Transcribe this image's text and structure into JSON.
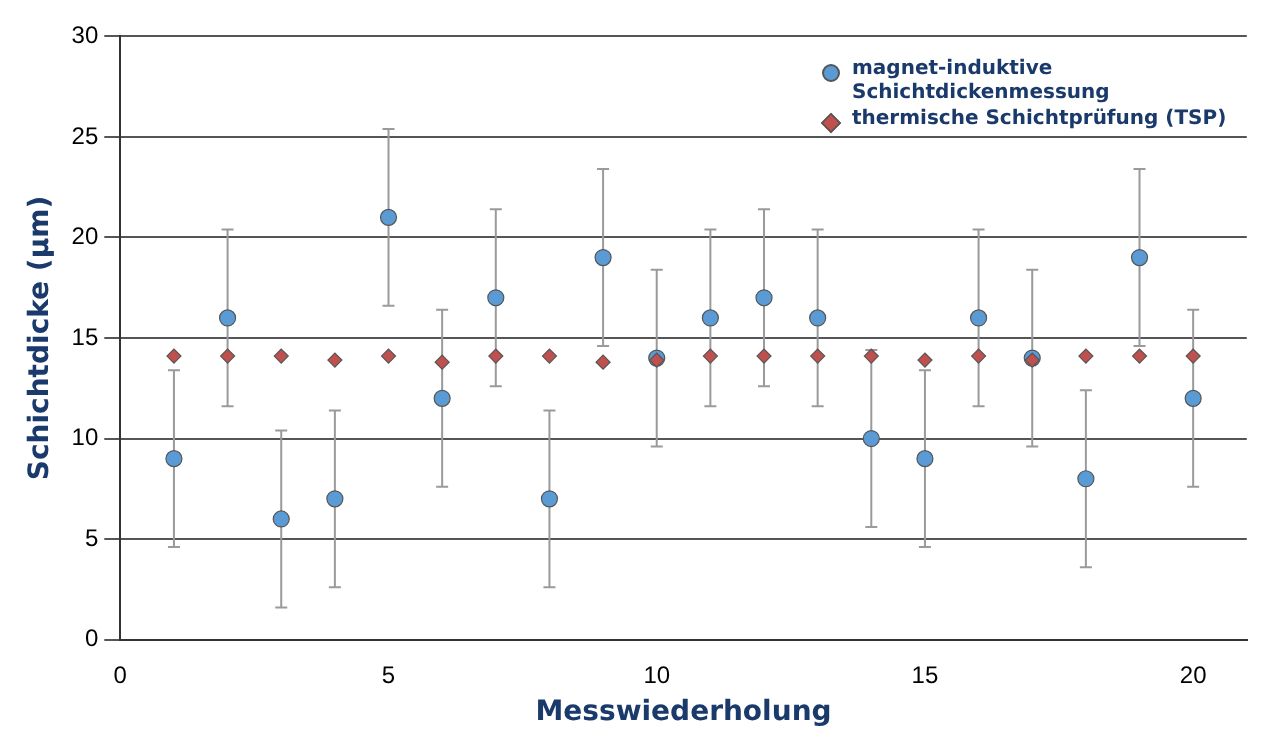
{
  "chart_data": {
    "type": "scatter",
    "xlabel": "Messwiederholung",
    "ylabel": "Schichtdicke (µm)",
    "x": [
      1,
      2,
      3,
      4,
      5,
      6,
      7,
      8,
      9,
      10,
      11,
      12,
      13,
      14,
      15,
      16,
      17,
      18,
      19,
      20
    ],
    "series": [
      {
        "name": "magnet-induktive Schichtdickenmessung",
        "color": "#5b9bd5",
        "marker": "circle",
        "values": [
          9,
          16,
          6,
          7,
          21,
          12,
          17,
          7,
          19,
          14,
          16,
          17,
          16,
          10,
          9,
          16,
          14,
          8,
          19,
          12
        ],
        "errors": [
          4.4,
          4.4,
          4.4,
          4.4,
          4.4,
          4.4,
          4.4,
          4.4,
          4.4,
          4.4,
          4.4,
          4.4,
          4.4,
          4.4,
          4.4,
          4.4,
          4.4,
          4.4,
          4.4,
          4.4
        ]
      },
      {
        "name": "thermische Schichtprüfung (TSP)",
        "color": "#c0504d",
        "marker": "diamond",
        "values": [
          14.1,
          14.1,
          14.1,
          13.9,
          14.1,
          13.8,
          14.1,
          14.1,
          13.8,
          13.9,
          14.1,
          14.1,
          14.1,
          14.1,
          13.9,
          14.1,
          13.9,
          14.1,
          14.1,
          14.1
        ]
      }
    ],
    "xlim": [
      0,
      21
    ],
    "xticks": [
      0,
      5,
      10,
      15,
      20
    ],
    "ylim": [
      0,
      30
    ],
    "yticks": [
      0,
      5,
      10,
      15,
      20,
      25,
      30
    ],
    "grid": "y",
    "legend": "top right"
  }
}
